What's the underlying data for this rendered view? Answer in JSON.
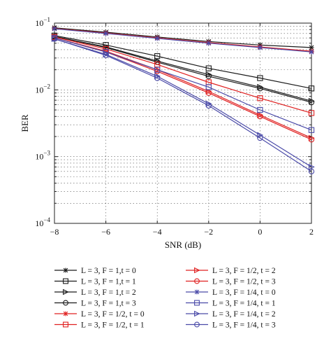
{
  "chart_data": {
    "type": "line",
    "xlabel": "SNR (dB)",
    "ylabel": "BER",
    "x": [
      -8,
      -6,
      -4,
      -2,
      0,
      2
    ],
    "xlim": [
      -8,
      2
    ],
    "ylim": [
      0.0001,
      0.1
    ],
    "yscale": "log",
    "grid": true,
    "legend_placement": "bottom, two columns",
    "x_tick_labels": [
      "−8",
      "−6",
      "−4",
      "−2",
      "0",
      "2"
    ],
    "y_tick_labels": [
      {
        "base": "10",
        "exp": "−1",
        "value": 0.1
      },
      {
        "base": "10",
        "exp": "−2",
        "value": 0.01
      },
      {
        "base": "10",
        "exp": "−3",
        "value": 0.001
      },
      {
        "base": "10",
        "exp": "−4",
        "value": 0.0001
      }
    ],
    "series": [
      {
        "name": "L = 3, F = 1,t = 0",
        "color": "#1a1a1a",
        "marker": "star",
        "values": [
          0.085,
          0.073,
          0.062,
          0.053,
          0.047,
          0.043
        ]
      },
      {
        "name": "L = 3, F = 1,t = 1",
        "color": "#1a1a1a",
        "marker": "square",
        "values": [
          0.065,
          0.047,
          0.032,
          0.021,
          0.015,
          0.0105
        ]
      },
      {
        "name": "L = 3, F = 1,t = 2",
        "color": "#1a1a1a",
        "marker": "triangle-right",
        "values": [
          0.063,
          0.044,
          0.027,
          0.017,
          0.011,
          0.0068
        ]
      },
      {
        "name": "L = 3, F = 1,t = 3",
        "color": "#1a1a1a",
        "marker": "circle",
        "values": [
          0.063,
          0.043,
          0.026,
          0.016,
          0.0105,
          0.0065
        ]
      },
      {
        "name": "L = 3, F = 1/2, t = 0",
        "color": "#e02020",
        "marker": "star",
        "values": [
          0.083,
          0.071,
          0.06,
          0.051,
          0.044,
          0.038
        ]
      },
      {
        "name": "L = 3, F = 1/2, t = 1",
        "color": "#e02020",
        "marker": "square",
        "values": [
          0.062,
          0.041,
          0.024,
          0.013,
          0.0075,
          0.0045
        ]
      },
      {
        "name": "L = 3, F = 1/2, t = 2",
        "color": "#e02020",
        "marker": "triangle-right",
        "values": [
          0.06,
          0.038,
          0.02,
          0.0095,
          0.0042,
          0.0019
        ]
      },
      {
        "name": "L = 3, F = 1/2, t = 3",
        "color": "#e02020",
        "marker": "circle",
        "values": [
          0.06,
          0.037,
          0.019,
          0.009,
          0.004,
          0.0018
        ]
      },
      {
        "name": "L = 3, F = 1/4, t = 0",
        "color": "#4a4aa8",
        "marker": "star",
        "values": [
          0.082,
          0.07,
          0.059,
          0.05,
          0.043,
          0.037
        ]
      },
      {
        "name": "L = 3, F = 1/4, t = 1",
        "color": "#4a4aa8",
        "marker": "square",
        "values": [
          0.06,
          0.037,
          0.02,
          0.011,
          0.005,
          0.0025
        ]
      },
      {
        "name": "L = 3, F = 1/4, t = 2",
        "color": "#4a4aa8",
        "marker": "triangle-right",
        "values": [
          0.058,
          0.034,
          0.016,
          0.0062,
          0.0021,
          0.0007
        ]
      },
      {
        "name": "L = 3, F = 1/4, t = 3",
        "color": "#4a4aa8",
        "marker": "circle",
        "values": [
          0.058,
          0.033,
          0.015,
          0.0058,
          0.0019,
          0.0006
        ]
      }
    ]
  }
}
